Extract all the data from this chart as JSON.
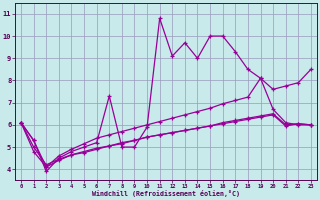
{
  "xlabel": "Windchill (Refroidissement éolien,°C)",
  "xlim": [
    -0.5,
    23.5
  ],
  "ylim": [
    3.5,
    11.5
  ],
  "xticks": [
    0,
    1,
    2,
    3,
    4,
    5,
    6,
    7,
    8,
    9,
    10,
    11,
    12,
    13,
    14,
    15,
    16,
    17,
    18,
    19,
    20,
    21,
    22,
    23
  ],
  "yticks": [
    4,
    5,
    6,
    7,
    8,
    9,
    10,
    11
  ],
  "bg_color": "#c8eaea",
  "grid_color": "#9999bb",
  "line_color": "#990099",
  "line1_y": [
    6.1,
    5.3,
    3.9,
    4.5,
    4.8,
    5.0,
    5.2,
    7.3,
    5.0,
    5.0,
    5.9,
    10.8,
    9.1,
    9.7,
    9.0,
    10.0,
    10.0,
    9.3,
    8.5,
    8.1,
    6.7,
    6.1,
    6.0,
    6.0
  ],
  "line2_y": [
    6.1,
    5.3,
    4.1,
    4.6,
    4.9,
    5.15,
    5.4,
    5.55,
    5.7,
    5.85,
    6.0,
    6.15,
    6.3,
    6.45,
    6.6,
    6.75,
    6.95,
    7.1,
    7.25,
    8.1,
    7.6,
    7.75,
    7.9,
    8.5
  ],
  "line3_y": [
    6.1,
    4.8,
    4.1,
    4.4,
    4.65,
    4.75,
    4.9,
    5.05,
    5.2,
    5.3,
    5.45,
    5.55,
    5.65,
    5.75,
    5.85,
    5.95,
    6.1,
    6.2,
    6.3,
    6.4,
    6.5,
    6.0,
    6.05,
    6.0
  ],
  "line4_y": [
    6.1,
    5.0,
    4.2,
    4.45,
    4.65,
    4.8,
    4.95,
    5.05,
    5.15,
    5.3,
    5.45,
    5.55,
    5.65,
    5.75,
    5.85,
    5.95,
    6.05,
    6.15,
    6.25,
    6.35,
    6.45,
    5.95,
    6.05,
    6.0
  ]
}
